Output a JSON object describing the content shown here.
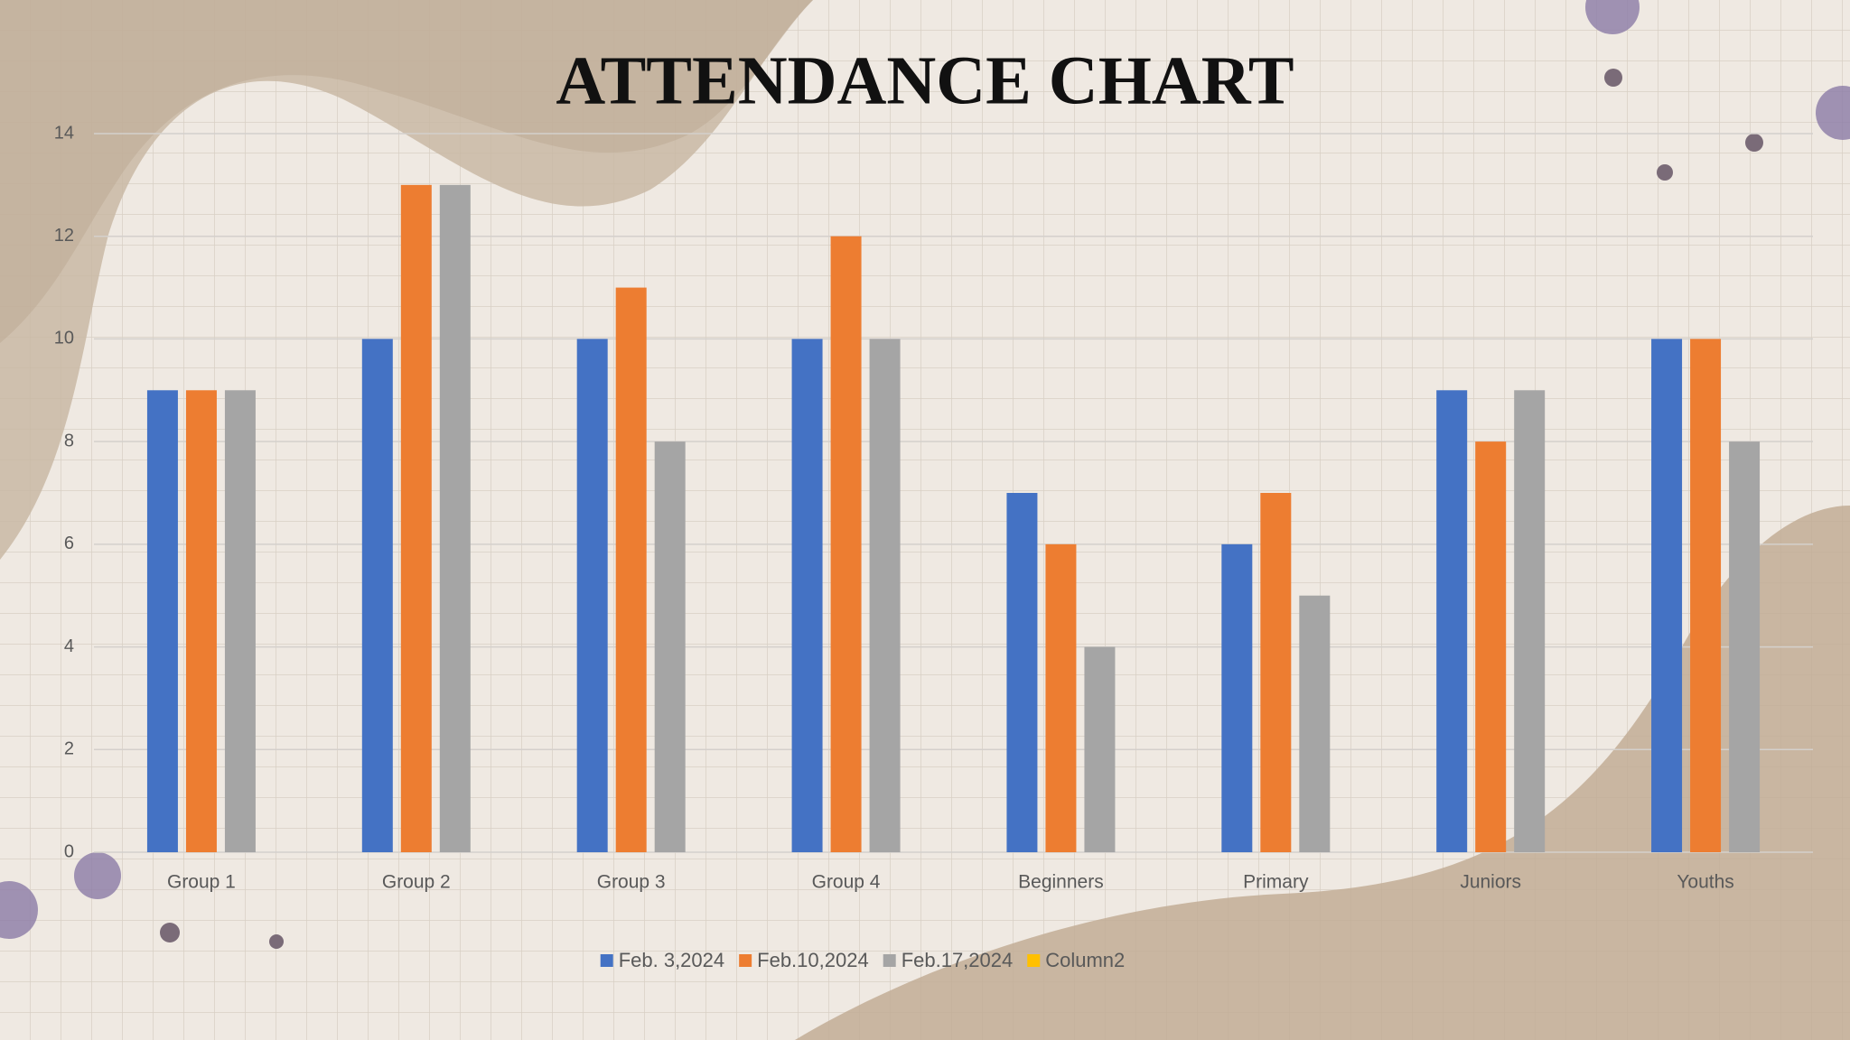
{
  "chart_data": {
    "type": "bar",
    "title": "ATTENDANCE CHART",
    "categories": [
      "Group 1",
      "Group 2",
      "Group 3",
      "Group 4",
      "Beginners",
      "Primary",
      "Juniors",
      "Youths"
    ],
    "series": [
      {
        "name": "Feb. 3,2024",
        "color": "#4472c4",
        "values": [
          9,
          10,
          10,
          10,
          7,
          6,
          9,
          10
        ]
      },
      {
        "name": "Feb.10,2024",
        "color": "#ed7d31",
        "values": [
          9,
          13,
          11,
          12,
          6,
          7,
          8,
          10
        ]
      },
      {
        "name": "Feb.17,2024",
        "color": "#a5a5a5",
        "values": [
          9,
          13,
          8,
          10,
          4,
          5,
          9,
          8
        ]
      },
      {
        "name": "Column2",
        "color": "#ffc000",
        "values": [
          null,
          null,
          null,
          null,
          null,
          null,
          null,
          null
        ]
      }
    ],
    "ylim": [
      0,
      14
    ],
    "yticks": [
      0,
      2,
      4,
      6,
      8,
      10,
      12,
      14
    ],
    "grid": true,
    "legend": "bottom"
  }
}
